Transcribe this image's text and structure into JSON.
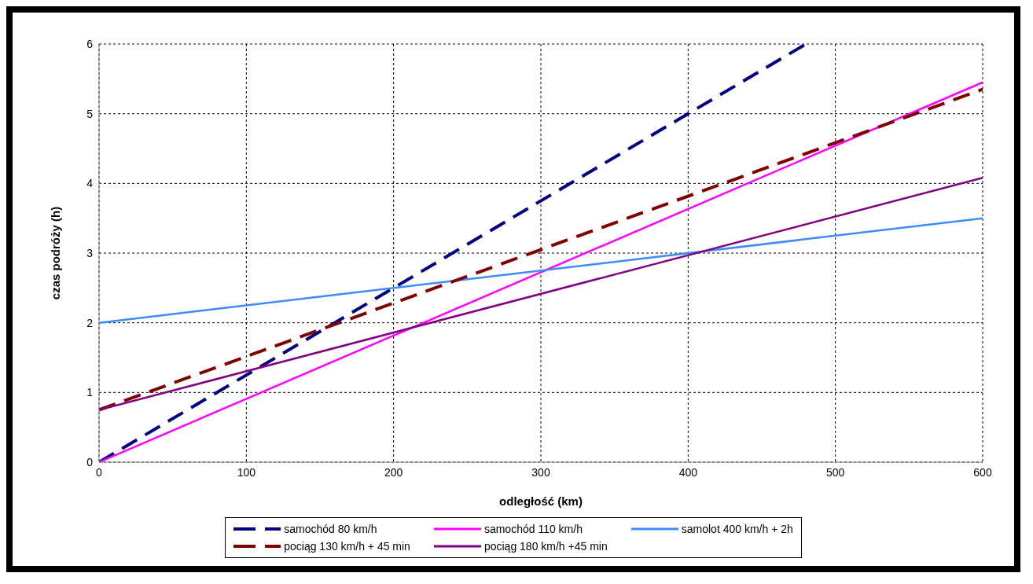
{
  "chart_data": {
    "type": "line",
    "xlabel": "odległość (km)",
    "ylabel": "czas podróży (h)",
    "xlim": [
      0,
      600
    ],
    "xticks": [
      0,
      100,
      200,
      300,
      400,
      500,
      600
    ],
    "ylim": [
      0,
      6
    ],
    "yticks": [
      0,
      1,
      2,
      3,
      4,
      5,
      6
    ],
    "grid": true,
    "legend": "bottom",
    "marker": "none",
    "series": [
      {
        "name": "samochód 80 km/h",
        "color": "#000080",
        "line_style": "dashed",
        "x": [
          0,
          480
        ],
        "values": [
          0,
          6
        ]
      },
      {
        "name": "samochód 110 km/h",
        "color": "#ff00ff",
        "line_style": "solid",
        "x": [
          0,
          600
        ],
        "values": [
          0,
          5.45
        ]
      },
      {
        "name": "samolot 400 km/h + 2h",
        "color": "#3c8cff",
        "line_style": "solid",
        "x": [
          0,
          600
        ],
        "values": [
          2,
          3.5
        ]
      },
      {
        "name": "pociąg 130 km/h + 45 min",
        "color": "#800000",
        "line_style": "dashed",
        "x": [
          0,
          600
        ],
        "values": [
          0.75,
          5.35
        ]
      },
      {
        "name": "pociąg 180 km/h +45 min",
        "color": "#800080",
        "line_style": "solid",
        "x": [
          0,
          600
        ],
        "values": [
          0.75,
          4.08
        ]
      }
    ]
  }
}
